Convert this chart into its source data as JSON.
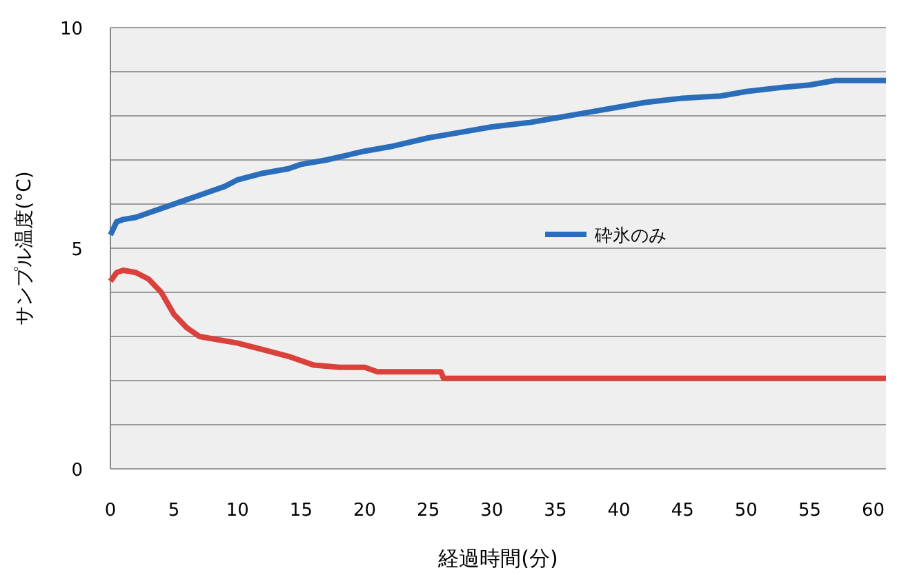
{
  "chart_data": {
    "type": "line",
    "xlabel": "経過時間(分)",
    "ylabel": "サンプル温度(°C)",
    "xlim": [
      0,
      61
    ],
    "xticks": [
      0,
      5,
      10,
      15,
      20,
      25,
      30,
      35,
      40,
      45,
      50,
      55,
      60
    ],
    "ylim": [
      0,
      10
    ],
    "yticks": [
      0,
      {
        "value": 1,
        "label": null
      },
      {
        "value": 2,
        "label": null
      },
      {
        "value": 3,
        "label": null
      },
      {
        "value": 4,
        "label": null
      },
      5,
      {
        "value": 6,
        "label": null
      },
      {
        "value": 7,
        "label": null
      },
      {
        "value": 8,
        "label": null
      },
      {
        "value": 9,
        "label": null
      },
      10
    ],
    "grid": "y",
    "legend": "right",
    "marker": "none",
    "line_style": "solid",
    "series": [
      {
        "name": "砕氷のみ",
        "color": "#2a6ebb",
        "x": [
          0,
          0.5,
          1,
          2,
          3,
          4,
          5,
          6,
          7,
          8,
          9,
          10,
          12,
          14,
          15,
          17,
          20,
          22,
          25,
          27,
          30,
          33,
          35,
          38,
          40,
          42,
          45,
          48,
          50,
          53,
          55,
          57,
          60,
          61
        ],
        "values": [
          5.3,
          5.6,
          5.65,
          5.7,
          5.8,
          5.9,
          6.0,
          6.1,
          6.2,
          6.3,
          6.4,
          6.55,
          6.7,
          6.8,
          6.9,
          7.0,
          7.2,
          7.3,
          7.5,
          7.6,
          7.75,
          7.85,
          7.95,
          8.1,
          8.2,
          8.3,
          8.4,
          8.45,
          8.55,
          8.65,
          8.7,
          8.8,
          8.8,
          8.8
        ]
      },
      {
        "color": "#d9413a",
        "x": [
          0,
          0.5,
          1,
          2,
          3,
          4,
          5,
          6,
          7,
          8,
          10,
          12,
          14,
          16,
          18,
          20,
          21,
          24,
          26,
          26.2,
          30,
          40,
          50,
          61
        ],
        "values": [
          4.25,
          4.45,
          4.5,
          4.45,
          4.3,
          4.0,
          3.5,
          3.2,
          3.0,
          2.95,
          2.85,
          2.7,
          2.55,
          2.35,
          2.3,
          2.3,
          2.2,
          2.2,
          2.2,
          2.05,
          2.05,
          2.05,
          2.05,
          2.05
        ]
      }
    ]
  }
}
